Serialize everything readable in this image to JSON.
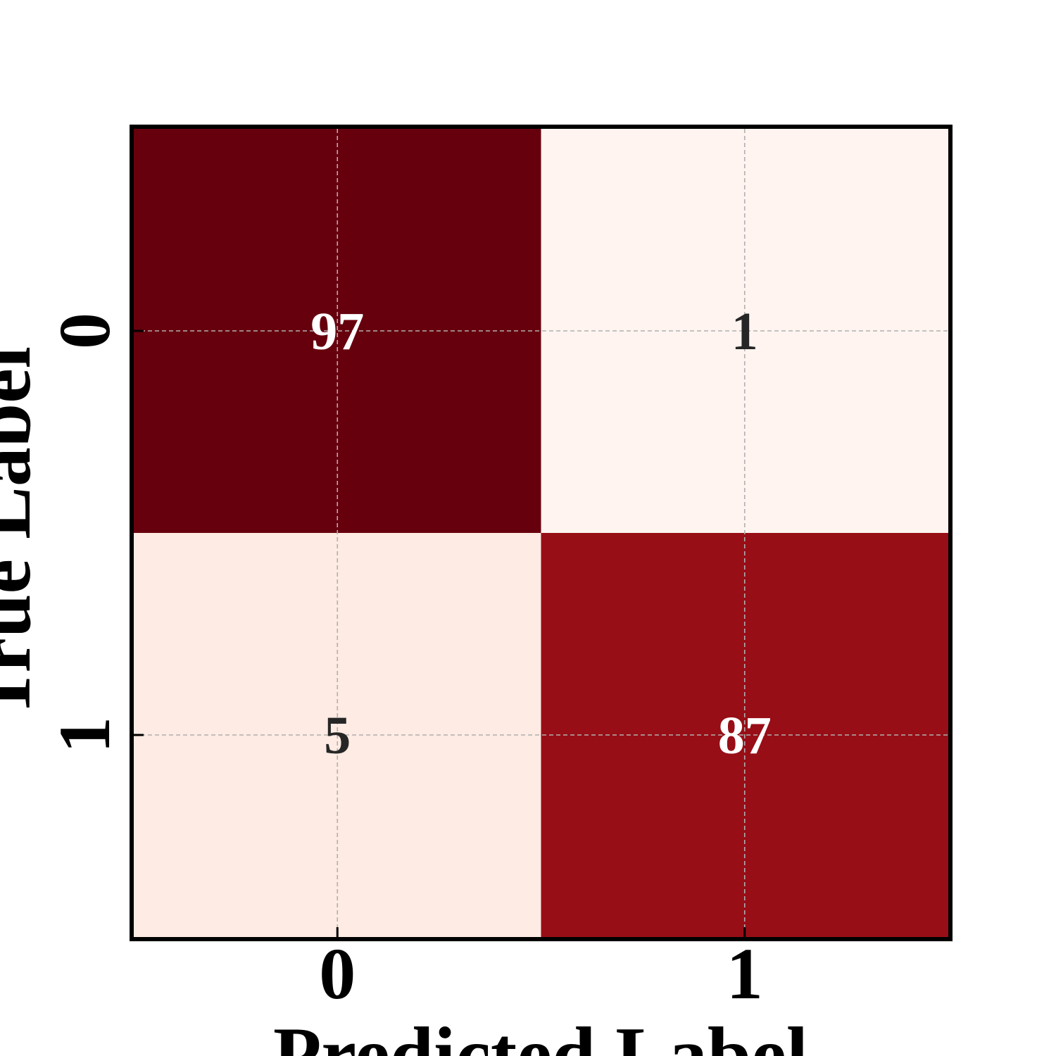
{
  "chart_data": {
    "type": "heatmap",
    "title": "",
    "xlabel": "Predicted Label",
    "ylabel": "True Label",
    "x_categories": [
      "0",
      "1"
    ],
    "y_categories": [
      "0",
      "1"
    ],
    "values": [
      [
        97,
        1
      ],
      [
        5,
        87
      ]
    ],
    "value_labels": [
      [
        "97",
        "1"
      ],
      [
        "5",
        "87"
      ]
    ],
    "colormap": "Reds",
    "grid": true,
    "colors": {
      "cell_0_0": "#67000d",
      "cell_0_1": "#fff4f0",
      "cell_1_0": "#feebe3",
      "cell_1_1": "#980e16",
      "text_on_dark": "#ffffff",
      "text_on_light": "#262626",
      "frame": "#000000",
      "grid": "#b0b0b0"
    }
  }
}
